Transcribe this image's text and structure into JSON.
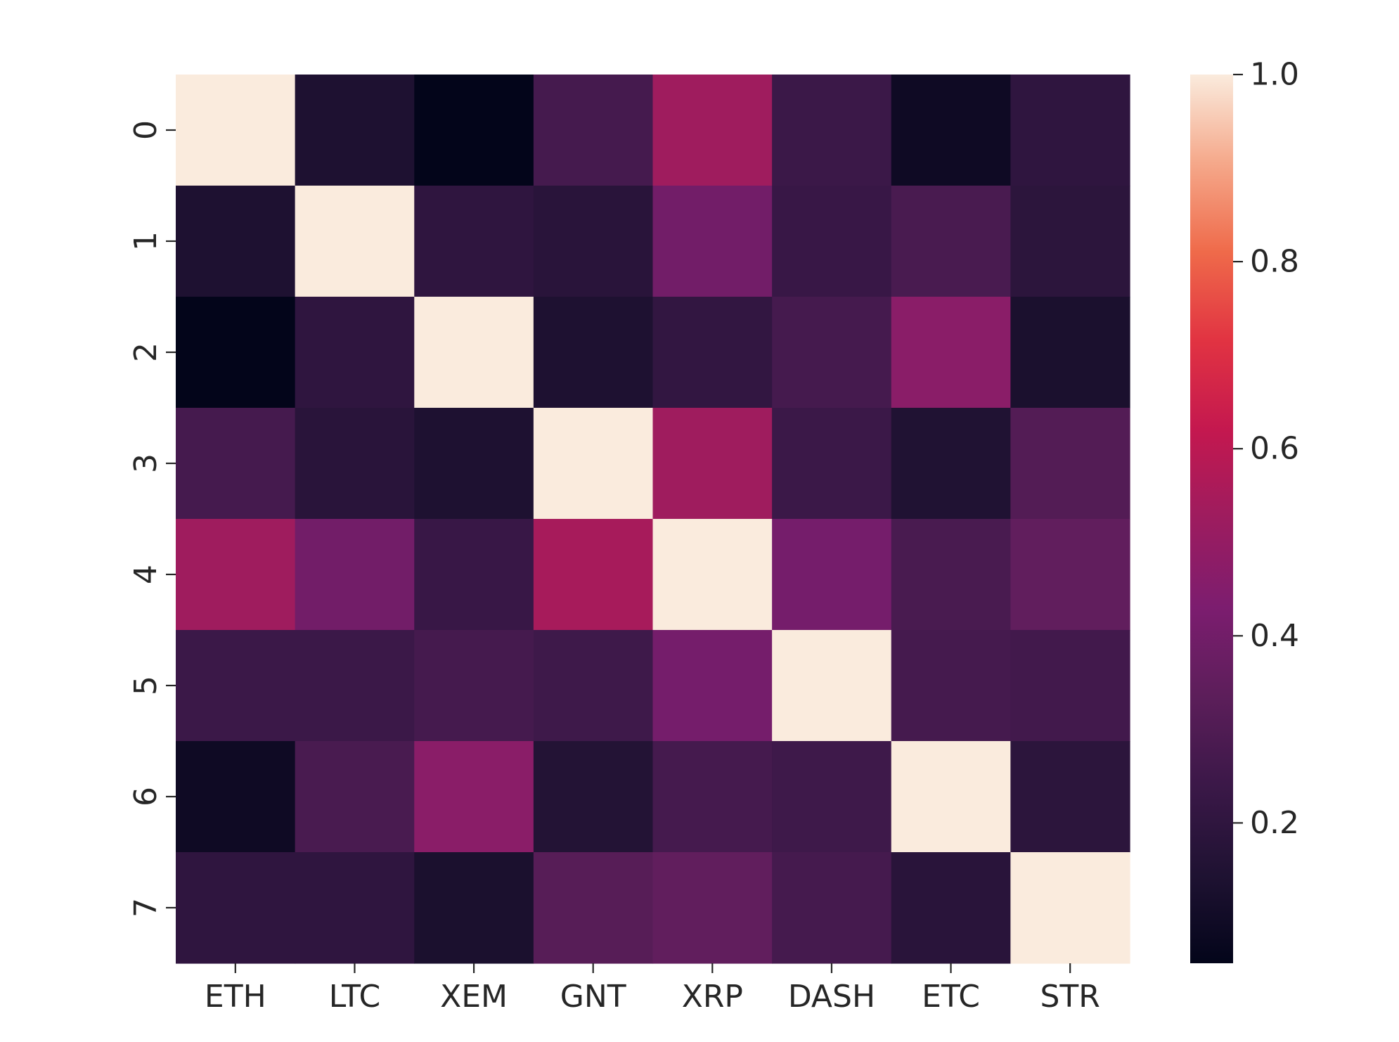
{
  "chart_data": {
    "type": "heatmap",
    "title": "",
    "xlabel": "",
    "ylabel": "",
    "x_categories": [
      "ETH",
      "LTC",
      "XEM",
      "GNT",
      "XRP",
      "DASH",
      "ETC",
      "STR"
    ],
    "y_categories": [
      "0",
      "1",
      "2",
      "3",
      "4",
      "5",
      "6",
      "7"
    ],
    "values": [
      [
        1.0,
        0.14,
        0.05,
        0.27,
        0.53,
        0.24,
        0.09,
        0.2
      ],
      [
        0.14,
        1.0,
        0.2,
        0.18,
        0.4,
        0.23,
        0.28,
        0.19
      ],
      [
        0.05,
        0.2,
        1.0,
        0.14,
        0.21,
        0.27,
        0.47,
        0.13
      ],
      [
        0.27,
        0.18,
        0.14,
        1.0,
        0.53,
        0.24,
        0.15,
        0.31
      ],
      [
        0.53,
        0.4,
        0.23,
        0.55,
        1.0,
        0.41,
        0.28,
        0.35
      ],
      [
        0.24,
        0.24,
        0.27,
        0.25,
        0.41,
        1.0,
        0.27,
        0.26
      ],
      [
        0.09,
        0.28,
        0.47,
        0.16,
        0.27,
        0.25,
        1.0,
        0.19
      ],
      [
        0.2,
        0.2,
        0.13,
        0.32,
        0.35,
        0.27,
        0.18,
        1.0
      ]
    ],
    "colorbar": {
      "min": 0.05,
      "max": 1.0,
      "ticks": [
        0.2,
        0.4,
        0.6,
        0.8,
        1.0
      ],
      "tick_labels": [
        "0.2",
        "0.4",
        "0.6",
        "0.8",
        "1.0"
      ]
    },
    "colormap": "rocket",
    "colormap_stops": [
      [
        0.0,
        "#03051a"
      ],
      [
        0.1,
        "#1f1232"
      ],
      [
        0.2,
        "#3b1848"
      ],
      [
        0.3,
        "#5c1e5a"
      ],
      [
        0.4,
        "#7c1d6f"
      ],
      [
        0.5,
        "#9d1c5f"
      ],
      [
        0.6,
        "#c4184f"
      ],
      [
        0.7,
        "#e13342"
      ],
      [
        0.8,
        "#ef6a4a"
      ],
      [
        0.9,
        "#f5a88a"
      ],
      [
        1.0,
        "#faebdd"
      ]
    ],
    "grid": false,
    "legend": "colorbar-right"
  }
}
